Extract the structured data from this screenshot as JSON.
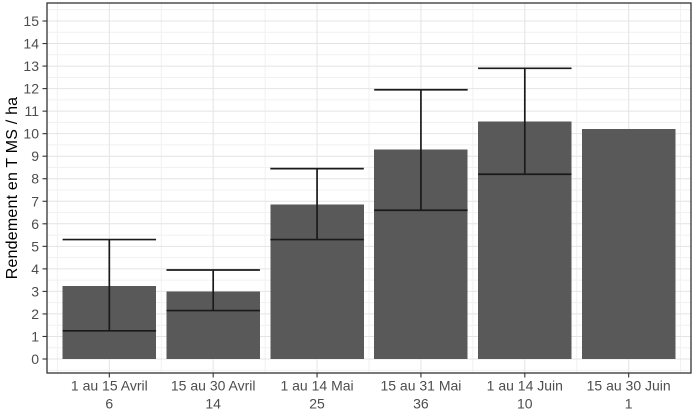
{
  "chart_data": {
    "type": "bar",
    "title": "",
    "ylabel": "Rendement en T MS / ha",
    "xlabel": "",
    "categories": [
      "1 au 15 Avril",
      "15 au 30 Avril",
      "1 au 14 Mai",
      "15 au 31 Mai",
      "1 au 14 Juin",
      "15 au 30 Juin"
    ],
    "category_counts": [
      "6",
      "14",
      "25",
      "36",
      "10",
      "1"
    ],
    "values": [
      3.25,
      3.0,
      6.85,
      9.3,
      10.55,
      10.2
    ],
    "error_low": [
      1.25,
      2.15,
      5.3,
      6.6,
      8.2,
      null
    ],
    "error_high": [
      5.3,
      3.95,
      8.45,
      11.95,
      12.9,
      null
    ],
    "ylim": [
      0,
      15
    ],
    "yticks": [
      0,
      1,
      2,
      3,
      4,
      5,
      6,
      7,
      8,
      9,
      10,
      11,
      12,
      13,
      14,
      15
    ],
    "grid": {
      "major": true,
      "minor": true
    },
    "legend": "none",
    "colors": {
      "bar_fill": "#595959",
      "error_bar": "#1a1a1a",
      "axis_text": "#4d4d4d",
      "axis_title": "#000000",
      "panel_border": "#333333",
      "tick_mark": "#333333",
      "grid_major": "#e4e4e4",
      "grid_minor": "#f1f1f1",
      "background": "#ffffff"
    }
  }
}
